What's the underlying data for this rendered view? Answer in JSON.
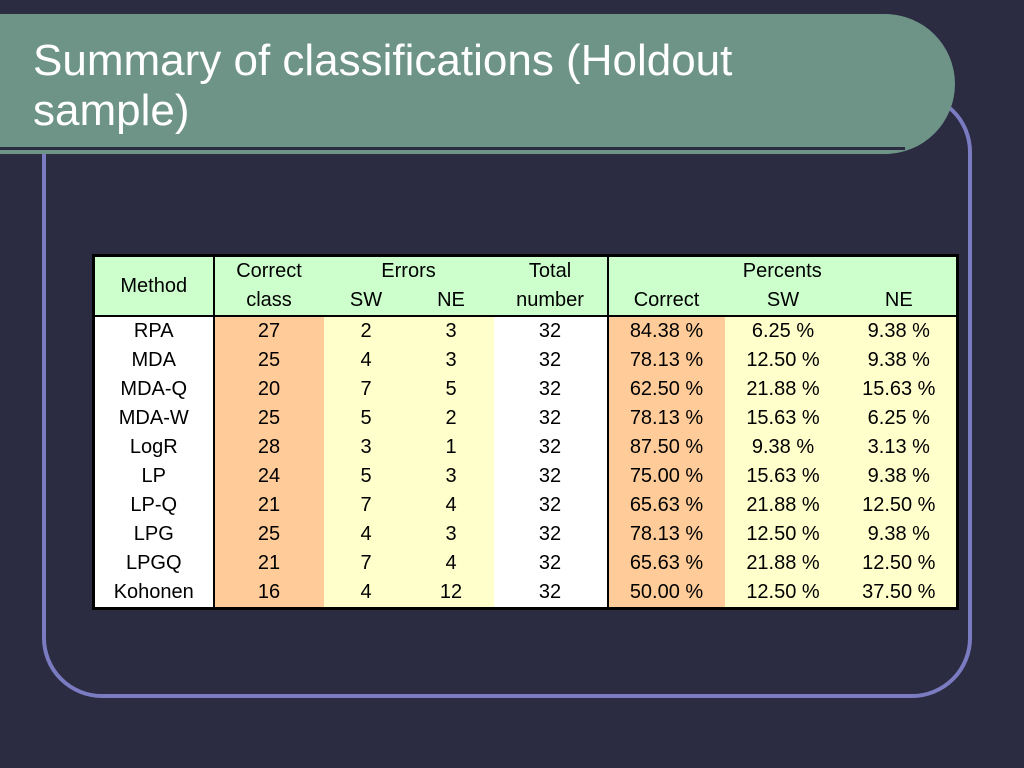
{
  "slide": {
    "title": "Summary of classifications (Holdout sample)"
  },
  "table": {
    "headers": {
      "method": "Method",
      "correct_top": "Correct",
      "correct_bottom": "class",
      "errors": "Errors",
      "errors_sw": "SW",
      "errors_ne": "NE",
      "total_top": "Total",
      "total_bottom": "number",
      "percents": "Percents",
      "pct_correct": "Correct",
      "pct_sw": "SW",
      "pct_ne": "NE"
    },
    "rows": [
      {
        "method": "RPA",
        "correct": "27",
        "sw": "2",
        "ne": "3",
        "total": "32",
        "pct_correct": "84.38 %",
        "pct_sw": "6.25 %",
        "pct_ne": "9.38 %"
      },
      {
        "method": "MDA",
        "correct": "25",
        "sw": "4",
        "ne": "3",
        "total": "32",
        "pct_correct": "78.13 %",
        "pct_sw": "12.50 %",
        "pct_ne": "9.38 %"
      },
      {
        "method": "MDA-Q",
        "correct": "20",
        "sw": "7",
        "ne": "5",
        "total": "32",
        "pct_correct": "62.50 %",
        "pct_sw": "21.88 %",
        "pct_ne": "15.63 %"
      },
      {
        "method": "MDA-W",
        "correct": "25",
        "sw": "5",
        "ne": "2",
        "total": "32",
        "pct_correct": "78.13 %",
        "pct_sw": "15.63 %",
        "pct_ne": "6.25 %"
      },
      {
        "method": "LogR",
        "correct": "28",
        "sw": "3",
        "ne": "1",
        "total": "32",
        "pct_correct": "87.50 %",
        "pct_sw": "9.38 %",
        "pct_ne": "3.13 %"
      },
      {
        "method": "LP",
        "correct": "24",
        "sw": "5",
        "ne": "3",
        "total": "32",
        "pct_correct": "75.00 %",
        "pct_sw": "15.63 %",
        "pct_ne": "9.38 %"
      },
      {
        "method": "LP-Q",
        "correct": "21",
        "sw": "7",
        "ne": "4",
        "total": "32",
        "pct_correct": "65.63 %",
        "pct_sw": "21.88 %",
        "pct_ne": "12.50 %"
      },
      {
        "method": "LPG",
        "correct": "25",
        "sw": "4",
        "ne": "3",
        "total": "32",
        "pct_correct": "78.13 %",
        "pct_sw": "12.50 %",
        "pct_ne": "9.38 %"
      },
      {
        "method": "LPGQ",
        "correct": "21",
        "sw": "7",
        "ne": "4",
        "total": "32",
        "pct_correct": "65.63 %",
        "pct_sw": "21.88 %",
        "pct_ne": "12.50 %"
      },
      {
        "method": "Kohonen",
        "correct": "16",
        "sw": "4",
        "ne": "12",
        "total": "32",
        "pct_correct": "50.00 %",
        "pct_sw": "12.50 %",
        "pct_ne": "37.50 %"
      }
    ]
  }
}
